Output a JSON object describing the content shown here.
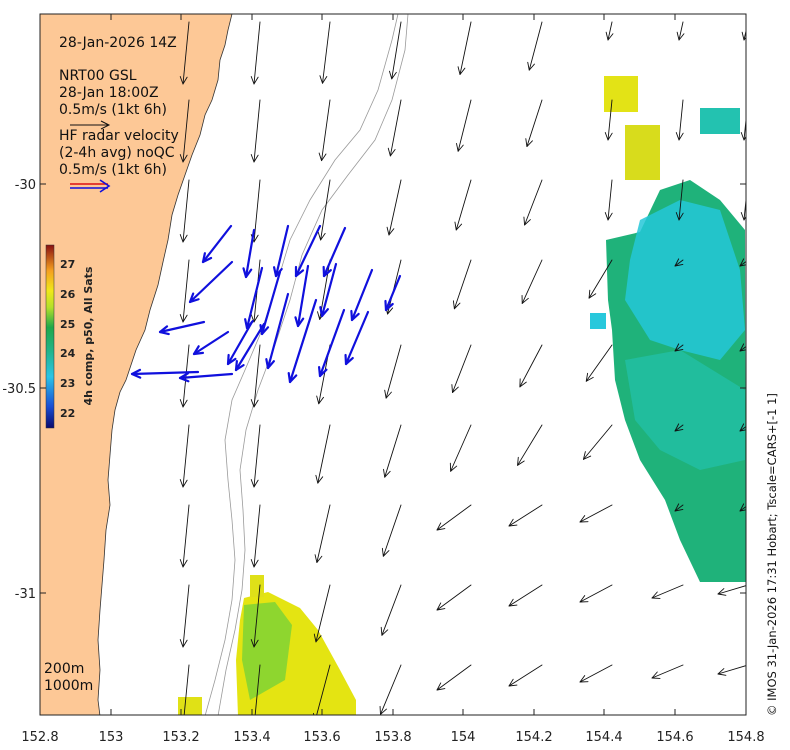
{
  "header": {
    "date_label": "28-Jan-2026 14Z"
  },
  "model_legend": {
    "name": "NRT00 GSL",
    "time": "28-Jan 18:00Z",
    "scale": "0.5m/s (1kt 6h)"
  },
  "radar_legend": {
    "line1": "HF radar velocity",
    "line2": "(2-4h avg) noQC",
    "scale": "0.5m/s (1kt 6h)"
  },
  "colorbar": {
    "title": "4h comp, p50, All Sats",
    "ticks": [
      "27",
      "26",
      "25",
      "24",
      "23",
      "22"
    ]
  },
  "x_axis": {
    "ticks": [
      "152.8",
      "153",
      "153.2",
      "153.4",
      "153.6",
      "153.8",
      "154",
      "154.2",
      "154.4",
      "154.6",
      "154.8"
    ]
  },
  "y_axis": {
    "ticks": [
      "-30",
      "-30.5",
      "-31"
    ]
  },
  "isobaths": {
    "line1": "200m",
    "line2": "1000m"
  },
  "credit": "© IMOS 31-Jan-2026 17:31 Hobart; Tscale=CARS+[-1 1]",
  "colors": {
    "land": "#fdc896",
    "radar_arrow": "#1010dd",
    "model_arrow": "#111111"
  }
}
